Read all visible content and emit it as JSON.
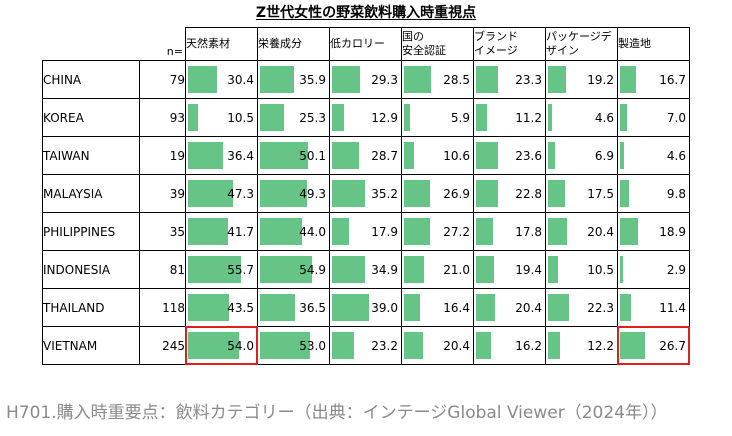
{
  "chart_data": {
    "type": "table",
    "title": "Z世代女性の野菜飲料購入時重視点",
    "n_label": "n=",
    "columns": [
      "天然素材",
      "栄養成分",
      "低カロリー",
      "国の\n安全認証",
      "ブランド\nイメージ",
      "パッケージデ\nザイン",
      "製造地"
    ],
    "rows": [
      {
        "country": "CHINA",
        "n": "79",
        "values": [
          30.4,
          35.9,
          29.3,
          28.5,
          23.3,
          19.2,
          16.7
        ]
      },
      {
        "country": "KOREA",
        "n": "93",
        "values": [
          10.5,
          25.3,
          12.9,
          5.9,
          11.2,
          4.6,
          7.0
        ]
      },
      {
        "country": "TAIWAN",
        "n": "19",
        "values": [
          36.4,
          50.1,
          28.7,
          10.6,
          23.6,
          6.9,
          4.6
        ]
      },
      {
        "country": "MALAYSIA",
        "n": "39",
        "values": [
          47.3,
          49.3,
          35.2,
          26.9,
          22.8,
          17.5,
          9.8
        ]
      },
      {
        "country": "PHILIPPINES",
        "n": "35",
        "values": [
          41.7,
          44.0,
          17.9,
          27.2,
          17.8,
          20.4,
          18.9
        ]
      },
      {
        "country": "INDONESIA",
        "n": "81",
        "values": [
          55.7,
          54.9,
          34.9,
          21.0,
          19.4,
          10.5,
          2.9
        ]
      },
      {
        "country": "THAILAND",
        "n": "118",
        "values": [
          43.5,
          36.5,
          39.0,
          16.4,
          20.4,
          22.3,
          11.4
        ]
      },
      {
        "country": "VIETNAM",
        "n": "245",
        "values": [
          54.0,
          53.0,
          23.2,
          20.4,
          16.2,
          12.2,
          26.7
        ]
      }
    ],
    "highlighted_cells": [
      {
        "row": "VIETNAM",
        "column": "天然素材"
      },
      {
        "row": "VIETNAM",
        "column": "製造地"
      }
    ],
    "bar_color": "#66c487",
    "highlight_color": "#e01f1f"
  },
  "caption": "H701.購入時重要点：飲料カテゴリー（出典：インテージGlobal Viewer（2024年））"
}
